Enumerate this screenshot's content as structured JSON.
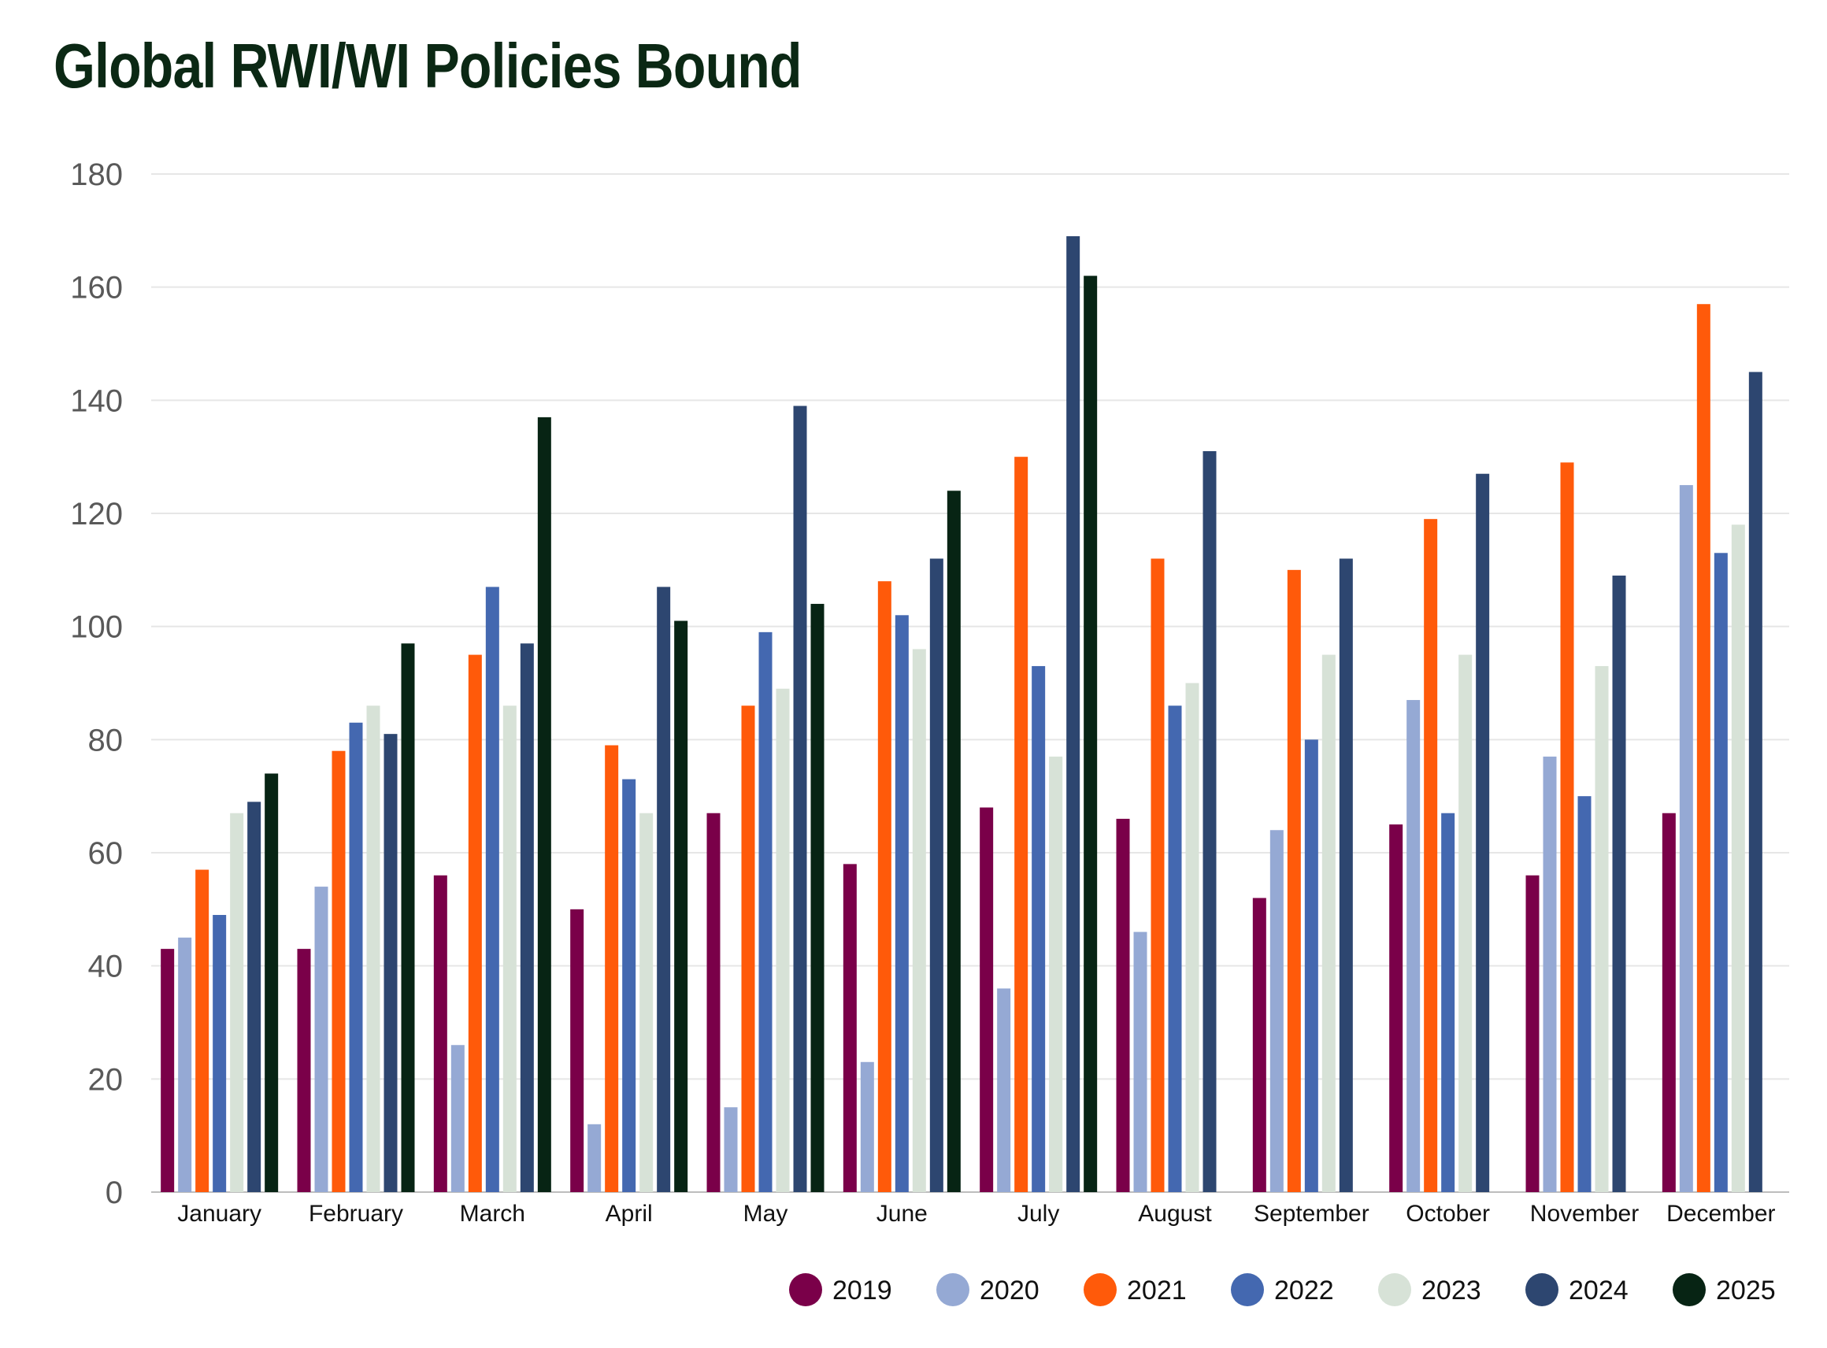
{
  "title": "Global RWI/WI Policies Bound",
  "chart_data": {
    "type": "bar",
    "title": "Global RWI/WI Policies Bound",
    "xlabel": "",
    "ylabel": "",
    "ylim": [
      0,
      180
    ],
    "yticks": [
      0,
      20,
      40,
      60,
      80,
      100,
      120,
      140,
      160,
      180
    ],
    "grid": true,
    "legend_position": "bottom-right",
    "categories": [
      "January",
      "February",
      "March",
      "April",
      "May",
      "June",
      "July",
      "August",
      "September",
      "October",
      "November",
      "December"
    ],
    "series": [
      {
        "name": "2019",
        "color": "#7a0049",
        "values": [
          43,
          43,
          56,
          50,
          67,
          58,
          68,
          66,
          52,
          65,
          56,
          67
        ]
      },
      {
        "name": "2020",
        "color": "#95a9d4",
        "values": [
          45,
          54,
          26,
          12,
          15,
          23,
          36,
          46,
          64,
          87,
          77,
          125
        ]
      },
      {
        "name": "2021",
        "color": "#ff5a0a",
        "values": [
          57,
          78,
          95,
          79,
          86,
          108,
          130,
          112,
          110,
          119,
          129,
          157
        ]
      },
      {
        "name": "2022",
        "color": "#4468b0",
        "values": [
          49,
          83,
          107,
          73,
          99,
          102,
          93,
          86,
          80,
          67,
          70,
          113
        ]
      },
      {
        "name": "2023",
        "color": "#d7e2d7",
        "values": [
          67,
          86,
          86,
          67,
          89,
          96,
          77,
          90,
          95,
          95,
          93,
          118
        ]
      },
      {
        "name": "2024",
        "color": "#2d4670",
        "values": [
          69,
          81,
          97,
          107,
          139,
          112,
          169,
          131,
          112,
          127,
          109,
          145
        ]
      },
      {
        "name": "2025",
        "color": "#072414",
        "values": [
          74,
          97,
          137,
          101,
          104,
          124,
          162,
          null,
          null,
          null,
          null,
          null
        ]
      }
    ]
  }
}
